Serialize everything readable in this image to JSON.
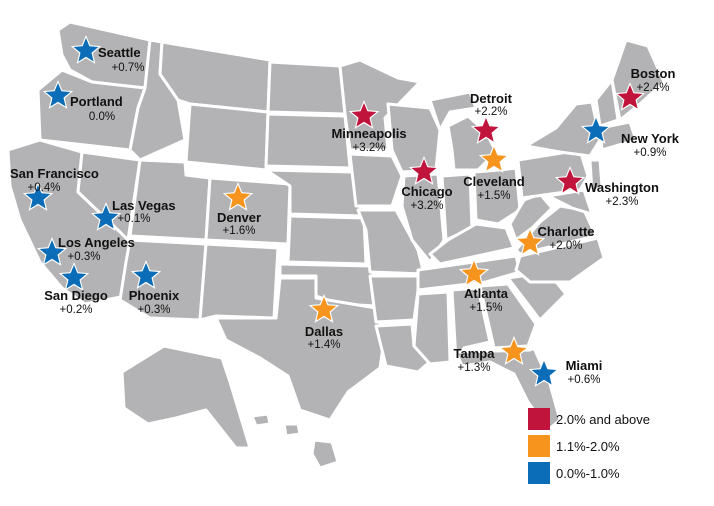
{
  "legend": [
    {
      "label": "2.0% and above",
      "color": "#c0143c"
    },
    {
      "label": "1.1%-2.0%",
      "color": "#f7941d"
    },
    {
      "label": "0.0%-1.0%",
      "color": "#0b6db7"
    }
  ],
  "cities": [
    {
      "id": "seattle",
      "name": "Seattle",
      "value": "+0.7%",
      "tier": 2
    },
    {
      "id": "portland",
      "name": "Portland",
      "value": "0.0%",
      "tier": 2
    },
    {
      "id": "san-francisco",
      "name": "San Francisco",
      "value": "+0.4%",
      "tier": 2
    },
    {
      "id": "las-vegas",
      "name": "Las Vegas",
      "value": "+0.1%",
      "tier": 2
    },
    {
      "id": "los-angeles",
      "name": "Los Angeles",
      "value": "+0.3%",
      "tier": 2
    },
    {
      "id": "san-diego",
      "name": "San Diego",
      "value": "+0.2%",
      "tier": 2
    },
    {
      "id": "phoenix",
      "name": "Phoenix",
      "value": "+0.3%",
      "tier": 2
    },
    {
      "id": "denver",
      "name": "Denver",
      "value": "+1.6%",
      "tier": 1
    },
    {
      "id": "dallas",
      "name": "Dallas",
      "value": "+1.4%",
      "tier": 1
    },
    {
      "id": "minneapolis",
      "name": "Minneapolis",
      "value": "+3.2%",
      "tier": 0
    },
    {
      "id": "chicago",
      "name": "Chicago",
      "value": "+3.2%",
      "tier": 0
    },
    {
      "id": "detroit",
      "name": "Detroit",
      "value": "+2.2%",
      "tier": 0
    },
    {
      "id": "cleveland",
      "name": "Cleveland",
      "value": "+1.5%",
      "tier": 1
    },
    {
      "id": "boston",
      "name": "Boston",
      "value": "+2.4%",
      "tier": 0
    },
    {
      "id": "new-york",
      "name": "New York",
      "value": "+0.9%",
      "tier": 2
    },
    {
      "id": "washington",
      "name": "Washington",
      "value": "+2.3%",
      "tier": 0
    },
    {
      "id": "charlotte",
      "name": "Charlotte",
      "value": "+2.0%",
      "tier": 1
    },
    {
      "id": "atlanta",
      "name": "Atlanta",
      "value": "+1.5%",
      "tier": 1
    },
    {
      "id": "tampa",
      "name": "Tampa",
      "value": "+1.3%",
      "tier": 1
    },
    {
      "id": "miami",
      "name": "Miami",
      "value": "+0.6%",
      "tier": 2
    }
  ]
}
